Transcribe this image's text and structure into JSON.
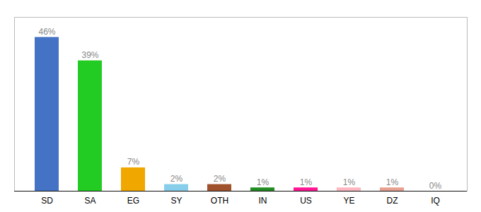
{
  "chart_data": {
    "type": "bar",
    "categories": [
      "SD",
      "SA",
      "EG",
      "SY",
      "OTH",
      "IN",
      "US",
      "YE",
      "DZ",
      "IQ"
    ],
    "values": [
      46,
      39,
      7,
      2,
      2,
      1,
      1,
      1,
      1,
      0
    ],
    "value_labels": [
      "46%",
      "39%",
      "7%",
      "2%",
      "2%",
      "1%",
      "1%",
      "1%",
      "1%",
      "0%"
    ],
    "colors": [
      "#4472c4",
      "#22cc22",
      "#f0a800",
      "#87ceeb",
      "#a0522d",
      "#228B22",
      "#ff1493",
      "#ffb6c1",
      "#e8a090",
      "#f0f0f0"
    ],
    "ylim": [
      0,
      52
    ],
    "data_labels": true,
    "tick_labels": "x",
    "grid": false
  }
}
